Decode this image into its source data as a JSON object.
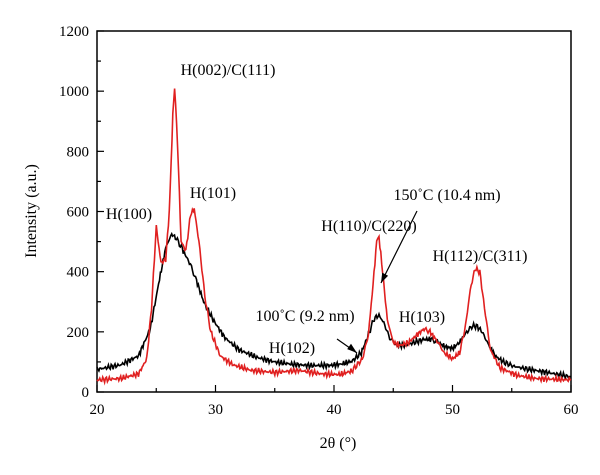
{
  "chart_data": {
    "type": "line",
    "title": "",
    "xlabel": "2θ (°)",
    "ylabel": "Intensity (a.u.)",
    "xlim": [
      20,
      60
    ],
    "ylim": [
      0,
      1200
    ],
    "xticks": [
      20,
      30,
      40,
      50,
      60
    ],
    "yticks": [
      0,
      200,
      400,
      600,
      800,
      1000,
      1200
    ],
    "grid": false,
    "series": [
      {
        "color": "#000000",
        "x": [
          20,
          22,
          23.5,
          24.5,
          25.2,
          25.8,
          26.3,
          26.7,
          27.2,
          27.8,
          28.4,
          29,
          29.8,
          30.8,
          32,
          33.5,
          35,
          36.5,
          38,
          39.5,
          40.5,
          41.5,
          42.3,
          42.9,
          43.4,
          43.8,
          44.2,
          44.7,
          45.3,
          46,
          46.8,
          47.6,
          48.2,
          48.8,
          49.4,
          50,
          50.6,
          51.2,
          51.7,
          52.1,
          52.5,
          53,
          53.6,
          54.3,
          55.2,
          56.5,
          58,
          60
        ],
        "y": [
          75,
          90,
          120,
          210,
          360,
          480,
          525,
          510,
          475,
          430,
          370,
          300,
          240,
          180,
          140,
          115,
          100,
          92,
          88,
          88,
          92,
          102,
          130,
          190,
          245,
          255,
          230,
          180,
          155,
          155,
          165,
          175,
          175,
          165,
          150,
          145,
          165,
          200,
          220,
          218,
          200,
          160,
          120,
          100,
          85,
          75,
          65,
          50
        ]
      },
      {
        "color": "#e02020",
        "x": [
          20,
          22,
          23.5,
          24.2,
          24.6,
          25,
          25.4,
          25.8,
          26.1,
          26.4,
          26.55,
          26.8,
          27.1,
          27.5,
          27.9,
          28.2,
          28.6,
          29.1,
          29.6,
          30.4,
          31.5,
          33,
          35,
          37,
          39,
          40.5,
          41.5,
          42.4,
          42.9,
          43.3,
          43.6,
          43.8,
          44.1,
          44.5,
          45,
          45.6,
          46.3,
          47,
          47.6,
          48.1,
          48.7,
          49.3,
          50,
          50.6,
          51.1,
          51.5,
          51.9,
          52.3,
          52.7,
          53.2,
          54,
          55.5,
          57,
          60
        ],
        "y": [
          40,
          45,
          60,
          110,
          280,
          550,
          430,
          440,
          600,
          920,
          1015,
          820,
          500,
          470,
          590,
          610,
          500,
          320,
          200,
          120,
          90,
          72,
          65,
          72,
          60,
          58,
          70,
          110,
          190,
          360,
          500,
          515,
          400,
          240,
          165,
          155,
          165,
          190,
          210,
          200,
          170,
          130,
          110,
          130,
          220,
          340,
          410,
          400,
          280,
          140,
          80,
          55,
          45,
          40
        ]
      }
    ],
    "annotations": [
      "H(002)/C(111)",
      "H(100)",
      "H(101)",
      "150˚C (10.4 nm)",
      "H(110)/C(220)",
      "H(112)/C(311)",
      "100˚C (9.2 nm)",
      "H(103)",
      "H(102)"
    ]
  }
}
